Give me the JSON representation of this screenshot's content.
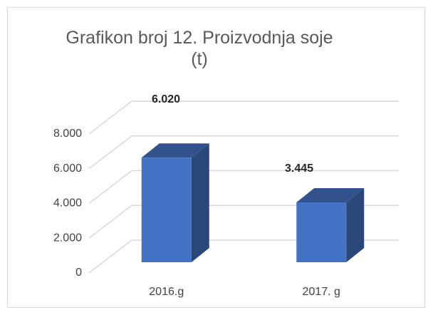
{
  "chart_data": {
    "type": "bar3d",
    "title": "Grafikon broj 12. Proizvodnja soje (t)",
    "categories": [
      "2016.g",
      "2017. g"
    ],
    "values": [
      6020,
      3445
    ],
    "value_labels": [
      "6.020",
      "3.445"
    ],
    "color": "#4472c4",
    "ylim": [
      0,
      8000
    ],
    "yticks": [
      0,
      {
        "value": 2000,
        "label": "2.000"
      },
      {
        "value": 4000,
        "label": "4.000"
      },
      {
        "value": 6000,
        "label": "6.000"
      },
      {
        "value": 8000,
        "label": "8.000"
      }
    ],
    "grid": true
  }
}
